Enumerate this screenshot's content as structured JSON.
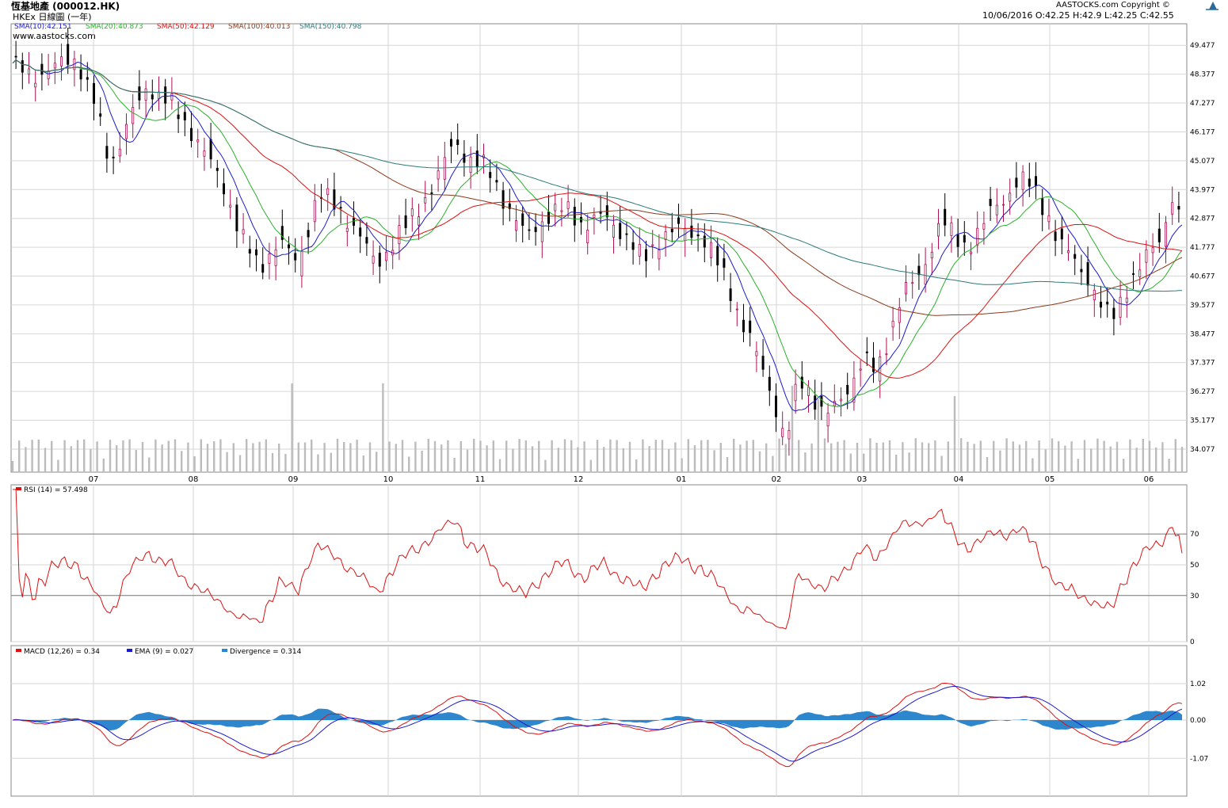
{
  "header": {
    "title": "恆基地產 (000012.HK)",
    "subtitle": "HKEx 日線圖 (一年)",
    "copyright": "AASTOCKS.com Copyright ©",
    "website": "www.aastocks.com",
    "ohlc_line": "10/06/2016  O:42.25  H:42.9  L:42.25  C:42.55"
  },
  "legend": {
    "sma10": "SMA(10):42.151",
    "sma20": "SMA(20):40.873",
    "sma50": "SMA(50):42.129",
    "sma100": "SMA(100):40.013",
    "sma150": "SMA(150):40.798",
    "rsi": "RSI (14)  = 57.498",
    "macd": "MACD (12,26) = 0.34",
    "ema": "EMA (9) = 0.027",
    "divergence": "Divergence = 0.314"
  },
  "colors": {
    "sma10": "#1a1acc",
    "sma20": "#2bb02b",
    "sma50": "#dd1111",
    "sma100": "#8b3a1a",
    "sma150": "#2a7a78",
    "rsi": "#dd1111",
    "macd": "#dd1111",
    "ema": "#1a1acc",
    "divergence": "#2e86cc",
    "volume": "#bcbcbc",
    "candle_up": "#b01050",
    "candle_down": "#000000"
  },
  "chart_data": [
    {
      "type": "candlestick",
      "title": "恆基地產 (000012.HK)",
      "x_labels": [
        "07",
        "08",
        "09",
        "10",
        "11",
        "12",
        "01",
        "02",
        "03",
        "04",
        "05",
        "06"
      ],
      "y_ticks": [
        49.477,
        48.377,
        47.277,
        46.177,
        45.077,
        43.977,
        42.877,
        41.777,
        40.677,
        39.577,
        38.477,
        37.377,
        36.277,
        35.177,
        34.077
      ],
      "ylim": [
        33.2,
        50.3
      ],
      "last_bar": {
        "date": "10/06/2016",
        "open": 42.25,
        "high": 42.9,
        "low": 42.25,
        "close": 42.55
      },
      "series": [
        {
          "name": "SMA(10)",
          "last": 42.151
        },
        {
          "name": "SMA(20)",
          "last": 40.873
        },
        {
          "name": "SMA(50)",
          "last": 42.129
        },
        {
          "name": "SMA(100)",
          "last": 40.013
        },
        {
          "name": "SMA(150)",
          "last": 40.798
        }
      ]
    },
    {
      "type": "line",
      "name": "RSI (14)",
      "last": 57.498,
      "y_ticks": [
        0,
        30,
        50,
        70
      ],
      "ylim": [
        0,
        100
      ]
    },
    {
      "type": "line",
      "name": "MACD (12,26)",
      "y_ticks": [
        1.02,
        0.0,
        -1.07
      ],
      "series": [
        {
          "name": "MACD (12,26)",
          "last": 0.34
        },
        {
          "name": "EMA (9)",
          "last": 0.027
        },
        {
          "name": "Divergence",
          "last": 0.314
        }
      ]
    }
  ]
}
